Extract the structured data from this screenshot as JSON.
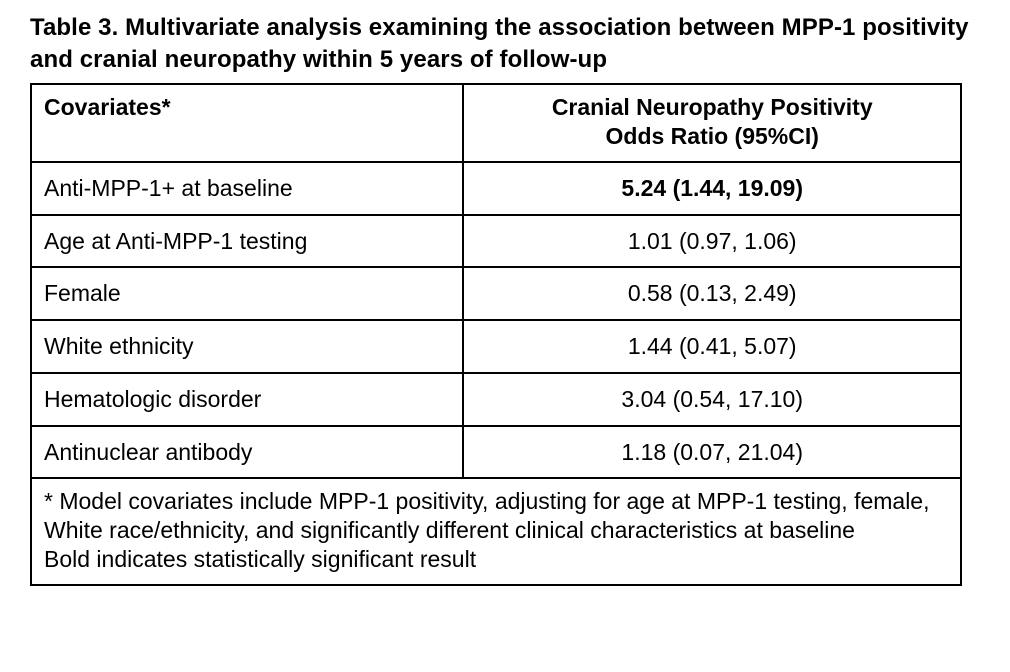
{
  "table": {
    "caption": "Table 3. Multivariate analysis examining the association between MPP-1 positivity and cranial neuropathy within 5 years of follow-up",
    "header": {
      "col1": "Covariates*",
      "col2_line1": "Cranial Neuropathy Positivity",
      "col2_line2": "Odds Ratio (95%CI)"
    },
    "rows": [
      {
        "covariate": "Anti-MPP-1+ at baseline",
        "odds_ratio": "5.24 (1.44, 19.09)"
      },
      {
        "covariate": "Age at Anti-MPP-1 testing",
        "odds_ratio": "1.01 (0.97, 1.06)"
      },
      {
        "covariate": "Female",
        "odds_ratio": "0.58 (0.13, 2.49)"
      },
      {
        "covariate": "White ethnicity",
        "odds_ratio": "1.44 (0.41, 5.07)"
      },
      {
        "covariate": "Hematologic disorder",
        "odds_ratio": "3.04 (0.54, 17.10)"
      },
      {
        "covariate": "Antinuclear antibody",
        "odds_ratio": "1.18 (0.07, 21.04)"
      }
    ],
    "footnote_line1": "* Model covariates include MPP-1 positivity, adjusting for age at MPP-1 testing, female, White race/ethnicity, and significantly different clinical characteristics at baseline",
    "footnote_line2": "Bold indicates statistically significant result"
  }
}
